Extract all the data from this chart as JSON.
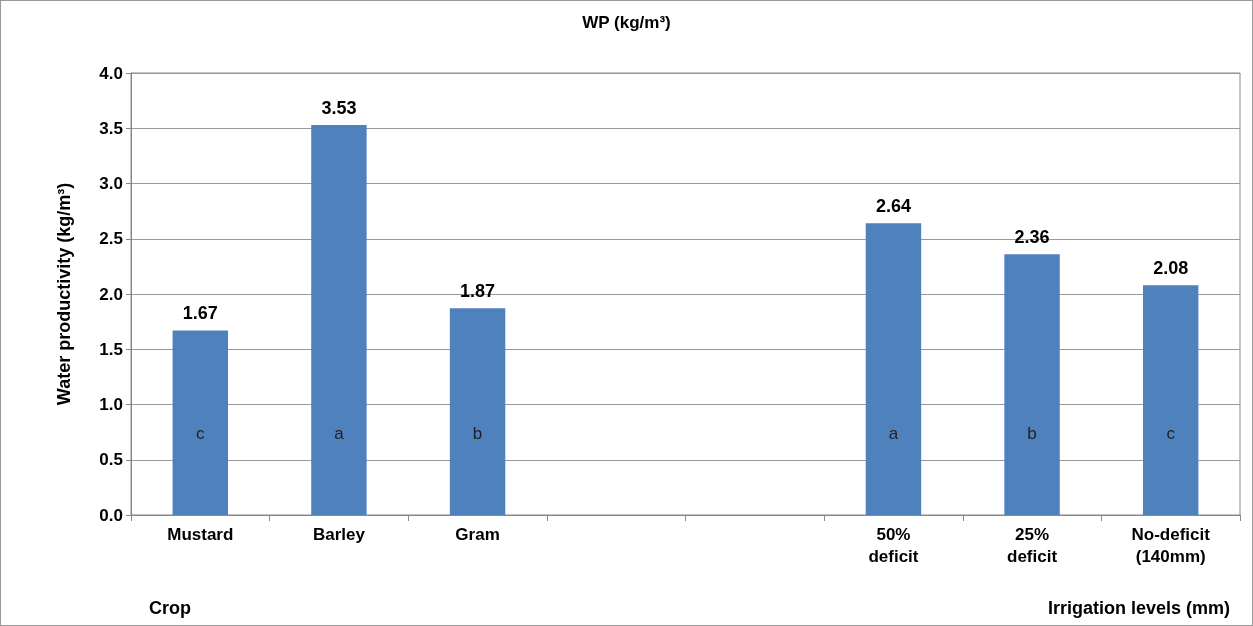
{
  "chart_data": {
    "type": "bar",
    "title": "WP (kg/m³)",
    "ylabel": "Water productivity (kg/m³)",
    "categories": [
      "Mustard",
      "Barley",
      "Gram",
      null,
      null,
      "50% deficit",
      "25% deficit",
      "No-deficit (140mm)"
    ],
    "values": [
      1.67,
      3.53,
      1.87,
      null,
      null,
      2.64,
      2.36,
      2.08
    ],
    "color": "#4f81bd",
    "ylim": [
      0,
      4
    ],
    "yticks": [
      {
        "value": 0,
        "label": "0.0"
      },
      {
        "value": 0.5,
        "label": "0.5"
      },
      {
        "value": 1,
        "label": "1.0"
      },
      {
        "value": 1.5,
        "label": "1.5"
      },
      {
        "value": 2,
        "label": "2.0"
      },
      {
        "value": 2.5,
        "label": "2.5"
      },
      {
        "value": 3,
        "label": "3.0"
      },
      {
        "value": 3.5,
        "label": "3.5"
      },
      {
        "value": 4,
        "label": "4.0"
      }
    ],
    "grid": "y",
    "data_labels": true,
    "annotations": [
      "c",
      "a",
      "b",
      "a",
      "b",
      "c",
      "Crop",
      "Irrigation levels (mm)"
    ]
  }
}
